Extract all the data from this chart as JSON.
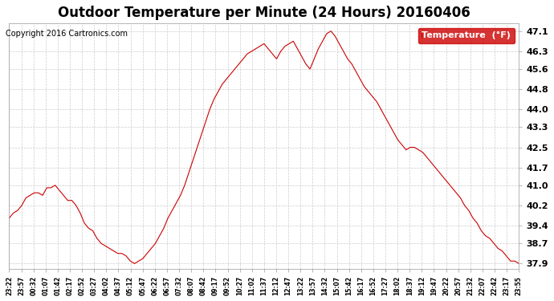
{
  "title": "Outdoor Temperature per Minute (24 Hours) 20160406",
  "copyright": "Copyright 2016 Cartronics.com",
  "legend_label": "Temperature  (°F)",
  "legend_bg": "#cc0000",
  "legend_text_color": "#ffffff",
  "line_color": "#cc0000",
  "background_color": "#ffffff",
  "grid_color": "#cccccc",
  "yticks": [
    37.9,
    38.7,
    39.4,
    40.2,
    41.0,
    41.7,
    42.5,
    43.3,
    44.0,
    44.8,
    45.6,
    46.3,
    47.1
  ],
  "ylim": [
    37.7,
    47.4
  ],
  "xtick_labels": [
    "23:22",
    "23:57",
    "00:32",
    "01:07",
    "01:42",
    "02:17",
    "02:52",
    "03:27",
    "04:02",
    "04:37",
    "05:12",
    "05:47",
    "06:22",
    "06:57",
    "07:32",
    "08:07",
    "08:42",
    "09:17",
    "09:52",
    "10:27",
    "11:02",
    "11:37",
    "12:12",
    "12:47",
    "13:22",
    "13:57",
    "14:32",
    "15:07",
    "15:42",
    "16:17",
    "16:52",
    "17:27",
    "18:02",
    "18:37",
    "19:12",
    "19:47",
    "20:22",
    "20:57",
    "21:32",
    "22:07",
    "22:42",
    "23:17",
    "23:55"
  ],
  "temp_data": [
    39.7,
    39.9,
    40.0,
    40.2,
    40.5,
    40.6,
    40.7,
    40.7,
    40.6,
    40.9,
    40.9,
    41.0,
    40.8,
    40.6,
    40.4,
    40.4,
    40.2,
    39.9,
    39.5,
    39.3,
    39.2,
    38.9,
    38.7,
    38.6,
    38.5,
    38.4,
    38.3,
    38.3,
    38.2,
    38.0,
    37.9,
    38.0,
    38.1,
    38.3,
    38.5,
    38.7,
    39.0,
    39.3,
    39.7,
    40.0,
    40.3,
    40.6,
    41.0,
    41.5,
    42.0,
    42.5,
    43.0,
    43.5,
    44.0,
    44.4,
    44.7,
    45.0,
    45.2,
    45.4,
    45.6,
    45.8,
    46.0,
    46.2,
    46.3,
    46.4,
    46.5,
    46.6,
    46.4,
    46.2,
    46.0,
    46.3,
    46.5,
    46.6,
    46.7,
    46.4,
    46.1,
    45.8,
    45.6,
    46.0,
    46.4,
    46.7,
    47.0,
    47.1,
    46.9,
    46.6,
    46.3,
    46.0,
    45.8,
    45.5,
    45.2,
    44.9,
    44.7,
    44.5,
    44.3,
    44.0,
    43.7,
    43.4,
    43.1,
    42.8,
    42.6,
    42.4,
    42.5,
    42.5,
    42.4,
    42.3,
    42.1,
    41.9,
    41.7,
    41.5,
    41.3,
    41.1,
    40.9,
    40.7,
    40.5,
    40.2,
    40.0,
    39.7,
    39.5,
    39.2,
    39.0,
    38.9,
    38.7,
    38.5,
    38.4,
    38.2,
    38.0,
    38.0,
    37.9
  ]
}
